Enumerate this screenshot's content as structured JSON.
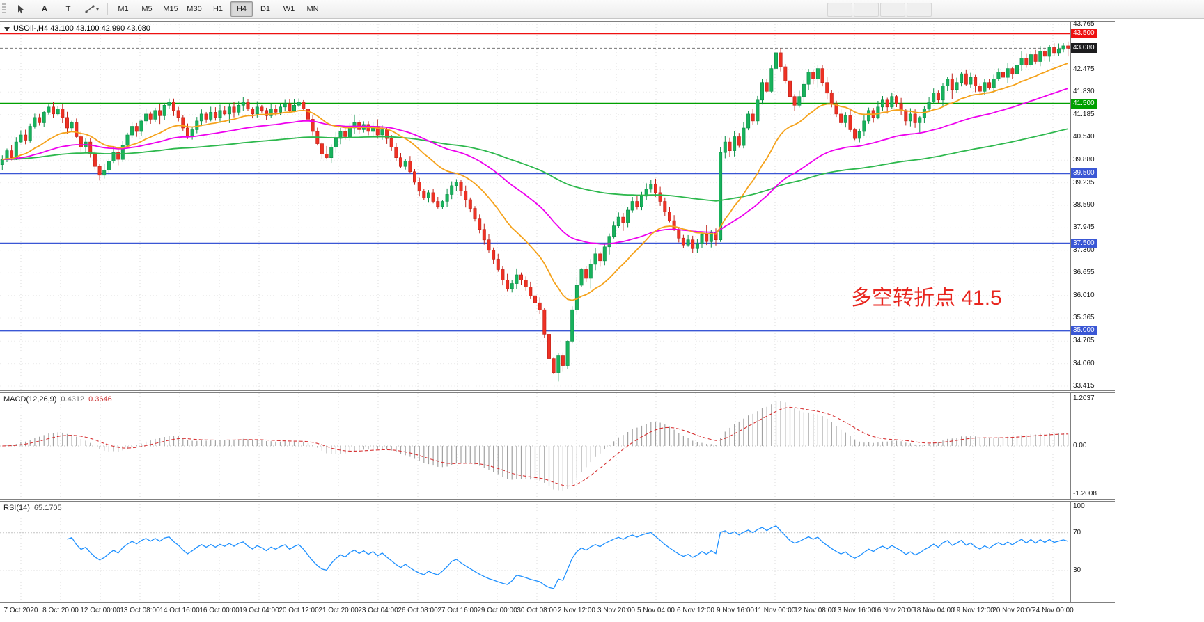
{
  "toolbar": {
    "tools": [
      "A",
      "T"
    ],
    "timeframes": [
      "M1",
      "M5",
      "M15",
      "M30",
      "H1",
      "H4",
      "D1",
      "W1",
      "MN"
    ],
    "active": "H4"
  },
  "chart_data": {
    "type": "candlestick",
    "symbol": "USOIl-",
    "timeframe": "H4",
    "title": "USOIl-,H4 43.100 43.100 42.990 43.080",
    "ohlc_current": {
      "open": "43.100",
      "high": "43.100",
      "low": "42.990",
      "close": "43.080"
    },
    "annotation": {
      "text": "多空转折点 41.5",
      "color": "#e8261f"
    },
    "price_axis": {
      "min": 33.415,
      "max": 43.765,
      "ticks": [
        "43.765",
        "42.475",
        "41.830",
        "41.185",
        "40.540",
        "39.880",
        "39.235",
        "38.590",
        "37.945",
        "37.300",
        "36.655",
        "36.010",
        "35.365",
        "34.705",
        "34.060",
        "33.415"
      ]
    },
    "current_price": {
      "price": 43.08,
      "label": "43.080",
      "color": "#1c1c1e"
    },
    "levels": [
      {
        "price": 43.5,
        "label": "43.500",
        "color": "#ee1111"
      },
      {
        "price": 41.5,
        "label": "41.500",
        "color": "#00a000"
      },
      {
        "price": 39.5,
        "label": "39.500",
        "color": "#3a57d5"
      },
      {
        "price": 37.5,
        "label": "37.500",
        "color": "#3a57d5"
      },
      {
        "price": 35.0,
        "label": "35.000",
        "color": "#3a57d5"
      }
    ],
    "moving_averages": [
      {
        "type": "ema",
        "period": 21,
        "color": "#f5a21b"
      },
      {
        "type": "ema",
        "period": 55,
        "color": "#ee00ee"
      },
      {
        "type": "ema",
        "period": 150,
        "color": "#2db84d"
      }
    ],
    "colors": {
      "up": "#18b25c",
      "up_border": "#0b8f47",
      "down": "#ee3124",
      "down_border": "#c0231a",
      "grid": "#dedede",
      "macd_hist": "#a2a2a2",
      "macd_signal": "#d63031",
      "rsi": "#1e90ff"
    },
    "macd": {
      "name": "MACD(12,26,9)",
      "value_main": "0.4312",
      "value_signal": "0.3646",
      "fast": 12,
      "slow": 26,
      "signal": 9,
      "scale_ticks": [
        "1.2037",
        "0.00",
        "-1.2008"
      ]
    },
    "rsi": {
      "name": "RSI(14)",
      "value": "65.1705",
      "period": 14,
      "scale_ticks": [
        "100",
        "70",
        "30"
      ],
      "level_lines": [
        70,
        30
      ]
    },
    "time_labels": [
      "7 Oct 2020",
      "8 Oct 20:00",
      "12 Oct 00:00",
      "13 Oct 08:00",
      "14 Oct 16:00",
      "16 Oct 00:00",
      "19 Oct 04:00",
      "20 Oct 12:00",
      "21 Oct 20:00",
      "23 Oct 04:00",
      "26 Oct 08:00",
      "27 Oct 16:00",
      "29 Oct 00:00",
      "30 Oct 08:00",
      "2 Nov 12:00",
      "3 Nov 20:00",
      "5 Nov 04:00",
      "6 Nov 12:00",
      "9 Nov 16:00",
      "11 Nov 00:00",
      "12 Nov 08:00",
      "13 Nov 16:00",
      "16 Nov 20:00",
      "18 Nov 04:00",
      "19 Nov 12:00",
      "20 Nov 20:00",
      "24 Nov 00:00"
    ],
    "closes": [
      39.9,
      40.15,
      39.95,
      40.4,
      40.6,
      40.45,
      40.85,
      41.1,
      40.95,
      41.25,
      41.4,
      41.2,
      41.35,
      41.1,
      40.8,
      40.95,
      40.55,
      40.25,
      40.4,
      40.05,
      39.7,
      39.45,
      39.6,
      39.85,
      40.1,
      39.9,
      40.3,
      40.6,
      40.85,
      40.7,
      41.0,
      41.2,
      41.05,
      41.3,
      41.15,
      41.45,
      41.55,
      41.3,
      41.1,
      40.8,
      40.55,
      40.75,
      41.0,
      41.2,
      41.05,
      41.25,
      41.1,
      41.3,
      41.2,
      41.4,
      41.25,
      41.45,
      41.55,
      41.35,
      41.2,
      41.4,
      41.3,
      41.15,
      41.35,
      41.25,
      41.4,
      41.5,
      41.3,
      41.45,
      41.55,
      41.35,
      41.05,
      40.7,
      40.35,
      40.05,
      39.95,
      40.25,
      40.5,
      40.7,
      40.55,
      40.8,
      40.95,
      40.75,
      40.9,
      40.7,
      40.85,
      40.6,
      40.75,
      40.5,
      40.25,
      39.95,
      39.7,
      39.85,
      39.55,
      39.25,
      39.0,
      38.8,
      38.95,
      38.7,
      38.55,
      38.7,
      38.9,
      39.15,
      39.25,
      39.0,
      38.75,
      38.5,
      38.2,
      37.9,
      37.6,
      37.3,
      37.05,
      36.75,
      36.45,
      36.2,
      36.35,
      36.6,
      36.45,
      36.25,
      36.0,
      35.8,
      35.6,
      34.9,
      34.2,
      33.8,
      34.3,
      34.0,
      34.7,
      35.6,
      36.3,
      36.75,
      36.5,
      36.9,
      37.2,
      37.0,
      37.4,
      37.7,
      38.0,
      38.25,
      38.1,
      38.45,
      38.7,
      38.55,
      38.85,
      39.05,
      39.2,
      38.95,
      38.7,
      38.4,
      38.15,
      37.9,
      37.65,
      37.45,
      37.6,
      37.35,
      37.5,
      37.75,
      37.55,
      37.8,
      37.6,
      40.1,
      40.4,
      40.15,
      40.55,
      40.3,
      40.8,
      41.2,
      41.0,
      41.6,
      42.1,
      41.85,
      42.5,
      42.95,
      42.55,
      42.15,
      41.7,
      41.45,
      41.7,
      42.05,
      42.4,
      42.2,
      42.5,
      42.1,
      41.8,
      41.5,
      41.2,
      40.95,
      41.15,
      40.75,
      40.5,
      40.7,
      41.0,
      41.3,
      41.1,
      41.4,
      41.6,
      41.4,
      41.7,
      41.5,
      41.3,
      41.0,
      41.2,
      40.95,
      41.1,
      41.35,
      41.55,
      41.8,
      41.6,
      42.0,
      42.2,
      41.9,
      42.1,
      42.35,
      42.05,
      42.25,
      42.0,
      41.85,
      42.1,
      41.95,
      42.2,
      42.4,
      42.25,
      42.5,
      42.35,
      42.6,
      42.8,
      42.6,
      42.9,
      42.7,
      43.0,
      42.85,
      43.1,
      42.95,
      43.05,
      43.15,
      43.08
    ],
    "note": "OHLC estimated from pixels; opens derived from previous close"
  }
}
